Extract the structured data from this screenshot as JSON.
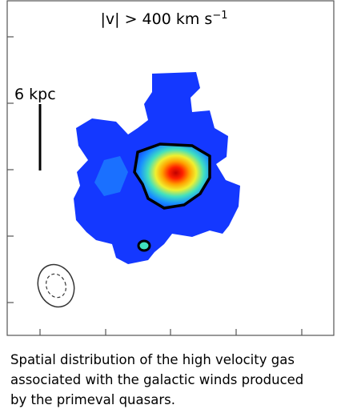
{
  "figure": {
    "title": "|v| > 400 km s",
    "title_sup": "−1",
    "scale_label": "6 kpc"
  },
  "caption": {
    "lines": [
      "Spatial distribution of the high velocity gas",
      "associated with the galactic winds produced",
      "by the primeval quasars."
    ]
  }
}
